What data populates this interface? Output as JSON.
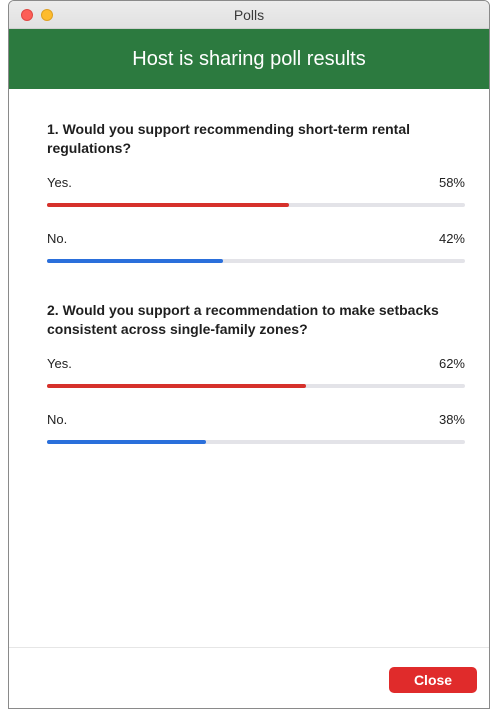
{
  "window": {
    "title": "Polls"
  },
  "banner": {
    "text": "Host is sharing poll results",
    "color": "#2c7a3f"
  },
  "colors": {
    "yes_bar": "#d6312b",
    "no_bar": "#2a6fdb",
    "track": "#e3e3e8",
    "close_button": "#e02b2b"
  },
  "questions": [
    {
      "text": "1. Would you support recommending short-term rental regulations?",
      "answers": [
        {
          "label": "Yes.",
          "percent_text": "58%",
          "percent": 58
        },
        {
          "label": "No.",
          "percent_text": "42%",
          "percent": 42
        }
      ]
    },
    {
      "text": "2. Would you support a recommendation to make setbacks consistent across single-family zones?",
      "answers": [
        {
          "label": "Yes.",
          "percent_text": "62%",
          "percent": 62
        },
        {
          "label": "No.",
          "percent_text": "38%",
          "percent": 38
        }
      ]
    }
  ],
  "footer": {
    "close_label": "Close"
  }
}
